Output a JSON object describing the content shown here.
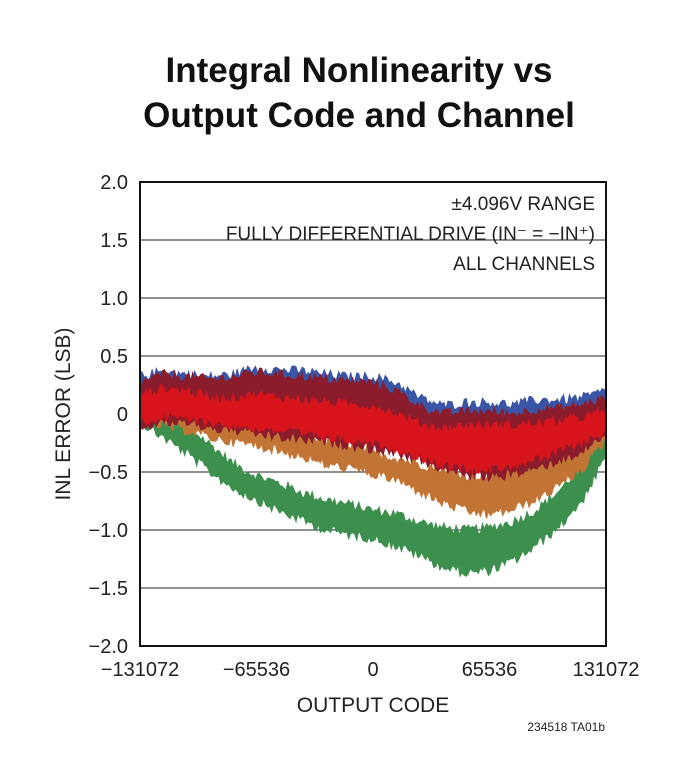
{
  "chart_data": {
    "type": "area",
    "title_lines": [
      "Integral Nonlinearity vs",
      "Output Code and Channel"
    ],
    "xlabel": "OUTPUT CODE",
    "ylabel": "INL ERROR (LSB)",
    "xlim": [
      -131072,
      131072
    ],
    "ylim": [
      -2.0,
      2.0
    ],
    "x_ticks": [
      -131072,
      -65536,
      0,
      65536,
      131072
    ],
    "x_tick_labels": [
      "−131072",
      "−65536",
      "0",
      "65536",
      "131072"
    ],
    "y_ticks": [
      2.0,
      1.5,
      1.0,
      0.5,
      0,
      -0.5,
      -1.0,
      -1.5,
      -2.0
    ],
    "y_tick_labels": [
      "2.0",
      "1.5",
      "1.0",
      "0.5",
      "0",
      "−0.5",
      "−1.0",
      "−1.5",
      "−2.0"
    ],
    "grid": true,
    "annotations": [
      "±4.096V RANGE",
      "FULLY DIFFERENTIAL DRIVE (IN⁻ = −IN⁺)",
      "ALL CHANNELS"
    ],
    "figure_id": "234518 TA01b",
    "series": [
      {
        "color": "#3d8f4e",
        "x": [
          -131072,
          -117965,
          -104858,
          -91750,
          -78643,
          -65536,
          -52429,
          -39322,
          -26214,
          -13107,
          0,
          13107,
          26214,
          39322,
          52429,
          65536,
          78643,
          91750,
          104858,
          117965,
          131072
        ],
        "upper": [
          0.12,
          0.05,
          -0.12,
          -0.28,
          -0.45,
          -0.55,
          -0.62,
          -0.7,
          -0.76,
          -0.8,
          -0.85,
          -0.88,
          -0.95,
          -1.0,
          -1.02,
          -1.0,
          -0.95,
          -0.85,
          -0.68,
          -0.45,
          -0.1
        ],
        "lower": [
          -0.05,
          -0.18,
          -0.32,
          -0.48,
          -0.62,
          -0.72,
          -0.82,
          -0.9,
          -0.98,
          -1.02,
          -1.05,
          -1.12,
          -1.2,
          -1.3,
          -1.35,
          -1.33,
          -1.25,
          -1.12,
          -0.95,
          -0.72,
          -0.35
        ]
      },
      {
        "color": "#c27434",
        "x": [
          -131072,
          -117965,
          -104858,
          -91750,
          -78643,
          -65536,
          -52429,
          -39322,
          -26214,
          -13107,
          0,
          13107,
          26214,
          39322,
          52429,
          65536,
          78643,
          91750,
          104858,
          117965,
          131072
        ],
        "upper": [
          0.22,
          0.22,
          0.15,
          0.05,
          -0.05,
          -0.1,
          -0.15,
          -0.2,
          -0.25,
          -0.28,
          -0.35,
          -0.4,
          -0.45,
          -0.5,
          -0.55,
          -0.55,
          -0.5,
          -0.45,
          -0.35,
          -0.2,
          0.05
        ],
        "lower": [
          -0.05,
          -0.08,
          -0.12,
          -0.18,
          -0.22,
          -0.25,
          -0.3,
          -0.35,
          -0.42,
          -0.45,
          -0.5,
          -0.55,
          -0.65,
          -0.75,
          -0.82,
          -0.85,
          -0.8,
          -0.72,
          -0.6,
          -0.45,
          -0.2
        ]
      },
      {
        "color": "#3b55a6",
        "x": [
          -131072,
          -117965,
          -104858,
          -91750,
          -78643,
          -65536,
          -52429,
          -39322,
          -26214,
          -13107,
          0,
          13107,
          26214,
          39322,
          52429,
          65536,
          78643,
          91750,
          104858,
          117965,
          131072
        ],
        "upper": [
          0.3,
          0.35,
          0.32,
          0.3,
          0.32,
          0.38,
          0.36,
          0.35,
          0.32,
          0.3,
          0.3,
          0.25,
          0.12,
          0.05,
          0.08,
          0.08,
          0.06,
          0.1,
          0.1,
          0.12,
          0.18
        ],
        "lower": [
          0.0,
          0.1,
          0.1,
          0.08,
          0.08,
          0.1,
          0.1,
          0.08,
          0.08,
          0.06,
          0.04,
          -0.02,
          -0.12,
          -0.2,
          -0.18,
          -0.2,
          -0.2,
          -0.18,
          -0.15,
          -0.1,
          -0.05
        ]
      },
      {
        "color": "#8a1c2c",
        "x": [
          -131072,
          -117965,
          -104858,
          -91750,
          -78643,
          -65536,
          -52429,
          -39322,
          -26214,
          -13107,
          0,
          13107,
          26214,
          39322,
          52429,
          65536,
          78643,
          91750,
          104858,
          117965,
          131072
        ],
        "upper": [
          0.25,
          0.32,
          0.3,
          0.28,
          0.3,
          0.34,
          0.32,
          0.3,
          0.28,
          0.26,
          0.25,
          0.18,
          0.05,
          -0.02,
          0.0,
          0.0,
          -0.02,
          0.02,
          0.03,
          0.06,
          0.12
        ],
        "lower": [
          -0.1,
          -0.05,
          -0.05,
          -0.1,
          -0.12,
          -0.15,
          -0.18,
          -0.2,
          -0.22,
          -0.25,
          -0.28,
          -0.32,
          -0.38,
          -0.45,
          -0.5,
          -0.52,
          -0.5,
          -0.45,
          -0.38,
          -0.3,
          -0.15
        ]
      },
      {
        "color": "#d7141b",
        "x": [
          -131072,
          -117965,
          -104858,
          -91750,
          -78643,
          -65536,
          -52429,
          -39322,
          -26214,
          -13107,
          0,
          13107,
          26214,
          39322,
          52429,
          65536,
          78643,
          91750,
          104858,
          117965,
          131072
        ],
        "upper": [
          0.15,
          0.2,
          0.18,
          0.12,
          0.12,
          0.15,
          0.12,
          0.1,
          0.08,
          0.06,
          0.05,
          -0.02,
          -0.1,
          -0.15,
          -0.12,
          -0.12,
          -0.12,
          -0.1,
          -0.08,
          -0.05,
          0.0
        ],
        "lower": [
          -0.05,
          0.0,
          -0.02,
          -0.05,
          -0.08,
          -0.1,
          -0.12,
          -0.15,
          -0.18,
          -0.2,
          -0.22,
          -0.28,
          -0.35,
          -0.42,
          -0.45,
          -0.45,
          -0.42,
          -0.38,
          -0.3,
          -0.22,
          -0.12
        ]
      }
    ]
  }
}
